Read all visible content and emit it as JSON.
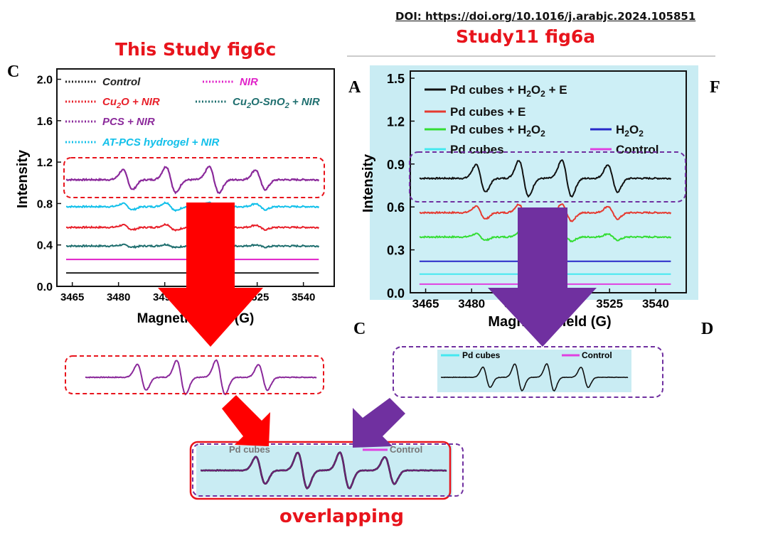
{
  "doi": "DOI: https://doi.org/10.1016/j.arabjc.2024.105851",
  "left_title": "This Study fig6c",
  "right_title": "Study11 fig6a",
  "overlap_label": "overlapping",
  "colors": {
    "annotation_red": "#e8141c",
    "annotation_purple": "#7030a0",
    "right_bg": "#c9ecf3"
  },
  "chart_data": [
    {
      "type": "line",
      "panel_letter": "C",
      "xlabel": "Magnetic Field (G)",
      "ylabel": "Intensity",
      "xlim": [
        3460,
        3550
      ],
      "ylim": [
        0.0,
        2.1
      ],
      "xticks": [
        3465,
        3480,
        3495,
        3510,
        3525,
        3540
      ],
      "yticks": [
        0.0,
        0.4,
        0.8,
        1.2,
        1.6,
        2.0
      ],
      "grid": false,
      "legend_position": "top",
      "series": [
        {
          "name": "Control",
          "baseline": 0.13,
          "peak_amplitude": 0.0,
          "color": "#222222"
        },
        {
          "name": "NIR",
          "baseline": 0.26,
          "peak_amplitude": 0.0,
          "color": "#e020c8"
        },
        {
          "name": "Cu₂O + NIR",
          "baseline": 0.57,
          "peak_amplitude": 0.03,
          "color": "#e8202a"
        },
        {
          "name": "Cu₂O-SnO₂ + NIR",
          "baseline": 0.39,
          "peak_amplitude": 0.015,
          "color": "#1f6f6f"
        },
        {
          "name": "PCS + NIR",
          "baseline": 1.03,
          "peak_amplitude": 0.13,
          "color": "#8b2a9b"
        },
        {
          "name": "AT-PCS hydrogel + NIR",
          "baseline": 0.77,
          "peak_amplitude": 0.04,
          "color": "#12c0ea"
        }
      ]
    },
    {
      "type": "line",
      "panel_letter": "A",
      "xlabel": "Magnetic Field (G)",
      "ylabel": "Intensity",
      "xlim": [
        3460,
        3550
      ],
      "ylim": [
        0.0,
        1.55
      ],
      "xticks": [
        3465,
        3480,
        3495,
        3510,
        3525,
        3540
      ],
      "yticks": [
        0.0,
        0.3,
        0.6,
        0.9,
        1.2,
        1.5
      ],
      "grid": false,
      "legend_position": "top",
      "series": [
        {
          "name": "Pd cubes + H₂O₂ + E",
          "baseline": 0.8,
          "peak_amplitude": 0.13,
          "color": "#111111"
        },
        {
          "name": "Pd cubes + E",
          "baseline": 0.56,
          "peak_amplitude": 0.06,
          "color": "#e53a30"
        },
        {
          "name": "Pd cubes + H₂O₂",
          "baseline": 0.39,
          "peak_amplitude": 0.03,
          "color": "#33dd33"
        },
        {
          "name": "H₂O₂",
          "baseline": 0.22,
          "peak_amplitude": 0.0,
          "color": "#2828c8"
        },
        {
          "name": "Pd cubes",
          "baseline": 0.13,
          "peak_amplitude": 0.0,
          "color": "#44e8f0"
        },
        {
          "name": "Control",
          "baseline": 0.06,
          "peak_amplitude": 0.0,
          "color": "#e040e0"
        }
      ]
    }
  ],
  "peak_positions": [
    3483,
    3497,
    3511,
    3526
  ],
  "right_panel_side_letters": {
    "top_right": "F",
    "bottom_left": "C",
    "bottom_right": "D"
  },
  "crop_labels": {
    "pd_cubes": "Pd cubes",
    "control": "Control"
  }
}
